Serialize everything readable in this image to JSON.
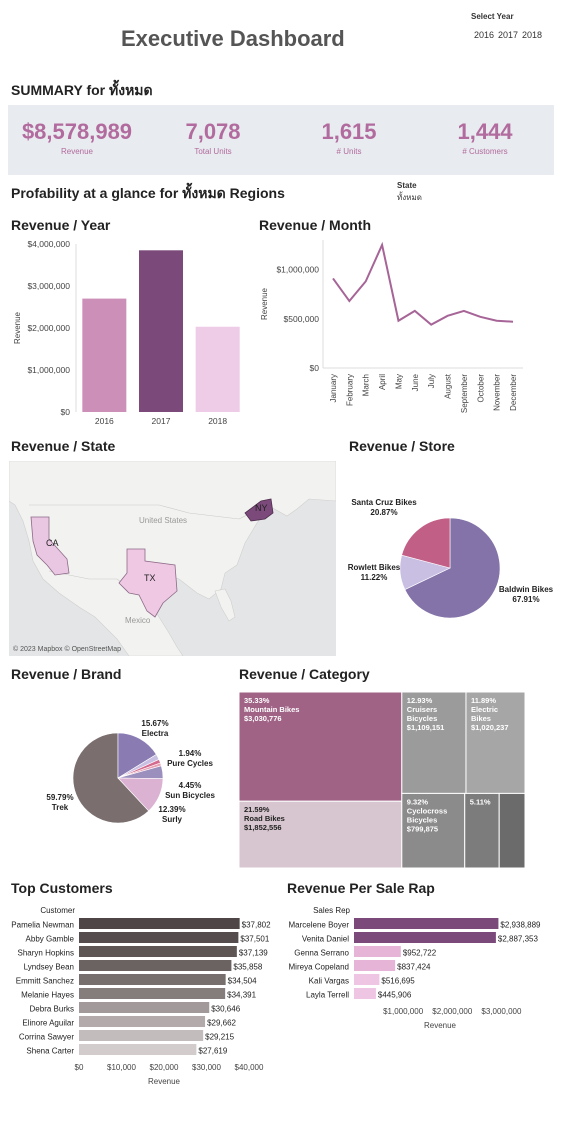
{
  "header": {
    "title": "Executive Dashboard",
    "year_filter_label": "Select Year",
    "years": [
      "2016",
      "2017",
      "2018"
    ]
  },
  "summary": {
    "heading": "SUMMARY for  ทั้งหมด",
    "kpis": [
      {
        "value": "$8,578,989",
        "label": "Revenue"
      },
      {
        "value": "7,078",
        "label": "Total Units"
      },
      {
        "value": "1,615",
        "label": "# Units"
      },
      {
        "value": "1,444",
        "label": "# Customers"
      }
    ]
  },
  "profitability": {
    "heading": "Profability at a glance for ทั้งหมด Regions",
    "state_label": "State",
    "state_value": "ทั้งหมด"
  },
  "colors": {
    "accent": "#b26b9e",
    "kpi_bg": "#e8ebef",
    "dark_purple": "#7b4a7b",
    "mid_pink": "#cc8fb8",
    "light_pink": "#eecbe6",
    "line": "#a66497"
  },
  "chart_data": [
    {
      "id": "revenue-year",
      "type": "bar",
      "title": "Revenue / Year",
      "ylabel": "Revenue",
      "categories": [
        "2016",
        "2017",
        "2018"
      ],
      "values": [
        2700000,
        3850000,
        2030000
      ],
      "ylim": [
        0,
        4000000
      ],
      "yticks": [
        0,
        1000000,
        2000000,
        3000000,
        4000000
      ],
      "ytick_labels": [
        "$0",
        "$1,000,000",
        "$2,000,000",
        "$3,000,000",
        "$4,000,000"
      ],
      "colors": [
        "#cc8fb8",
        "#7b4a7b",
        "#eecbe6"
      ]
    },
    {
      "id": "revenue-month",
      "type": "line",
      "title": "Revenue / Month",
      "ylabel": "Revenue",
      "categories": [
        "January",
        "February",
        "March",
        "April",
        "May",
        "June",
        "July",
        "August",
        "September",
        "October",
        "November",
        "December"
      ],
      "values": [
        910000,
        680000,
        880000,
        1250000,
        480000,
        580000,
        440000,
        530000,
        580000,
        520000,
        480000,
        470000
      ],
      "ylim": [
        0,
        1300000
      ],
      "yticks": [
        0,
        500000,
        1000000
      ],
      "ytick_labels": [
        "$0",
        "$500,000",
        "$1,000,000"
      ]
    },
    {
      "id": "revenue-state",
      "type": "map",
      "title": "Revenue / State",
      "labels": [
        "CA",
        "TX",
        "NY"
      ],
      "place_labels": [
        "United States",
        "Mexico"
      ],
      "attribution": "© 2023 Mapbox © OpenStreetMap"
    },
    {
      "id": "revenue-store",
      "type": "pie",
      "title": "Revenue / Store",
      "slices": [
        {
          "name": "Baldwin Bikes",
          "value": 67.91,
          "label": "67.91%",
          "color": "#8373a8"
        },
        {
          "name": "Rowlett Bikes",
          "value": 11.22,
          "label": "11.22%",
          "color": "#c9bfe3"
        },
        {
          "name": "Santa Cruz Bikes",
          "value": 20.87,
          "label": "20.87%",
          "color": "#c25f86"
        }
      ]
    },
    {
      "id": "revenue-brand",
      "type": "pie",
      "title": "Revenue / Brand",
      "slices": [
        {
          "name": "Trek",
          "value": 59.79,
          "label": "59.79%",
          "color": "#7a6e6e"
        },
        {
          "name": "Electra",
          "value": 15.67,
          "label": "15.67%",
          "color": "#8a7bb3"
        },
        {
          "name": "Pure Cycles",
          "value": 1.94,
          "label": "1.94%",
          "color": "#c9bfe3"
        },
        {
          "name": "",
          "value": 1.3,
          "label": "",
          "color": "#d46a8e"
        },
        {
          "name": "",
          "value": 1.0,
          "label": "",
          "color": "#e9a0b4"
        },
        {
          "name": "Sun Bicycles",
          "value": 4.45,
          "label": "4.45%",
          "color": "#9b8fbe"
        },
        {
          "name": "Surly",
          "value": 12.39,
          "label": "12.39%",
          "color": "#dcb2d2"
        }
      ]
    },
    {
      "id": "revenue-category",
      "type": "treemap",
      "title": "Revenue / Category",
      "items": [
        {
          "name": "Mountain Bikes",
          "pct": "35.33%",
          "value": "$3,030,776",
          "raw": 3030776,
          "color": "#a06386"
        },
        {
          "name": "Road Bikes",
          "pct": "21.59%",
          "value": "$1,852,556",
          "raw": 1852556,
          "color": "#d7c6cf"
        },
        {
          "name": "Cruisers Bicycles",
          "pct": "12.93%",
          "value": "$1,109,151",
          "raw": 1109151,
          "color": "#9b9b9b"
        },
        {
          "name": "Electric Bikes",
          "pct": "11.89%",
          "value": "$1,020,237",
          "raw": 1020237,
          "color": "#a6a6a6"
        },
        {
          "name": "Cyclocross Bicycles",
          "pct": "9.32%",
          "value": "$799,875",
          "raw": 799875,
          "color": "#8b8b8b"
        },
        {
          "name": "",
          "pct": "5.11%",
          "value": "",
          "raw": 438000,
          "color": "#7c7c7c"
        },
        {
          "name": "",
          "pct": "",
          "value": "",
          "raw": 328000,
          "color": "#6b6b6b"
        }
      ]
    },
    {
      "id": "top-customers",
      "type": "bar",
      "orientation": "horizontal",
      "title": "Top Customers",
      "category_header": "Customer",
      "xlabel": "Revenue",
      "xlim": [
        0,
        40000
      ],
      "xticks": [
        0,
        10000,
        20000,
        30000,
        40000
      ],
      "xtick_labels": [
        "$0",
        "$10,000",
        "$20,000",
        "$30,000",
        "$40,000"
      ],
      "categories": [
        "Pamelia Newman",
        "Abby Gamble",
        "Sharyn Hopkins",
        "Lyndsey Bean",
        "Emmitt Sanchez",
        "Melanie Hayes",
        "Debra Burks",
        "Elinore Aguilar",
        "Corrina Sawyer",
        "Shena Carter"
      ],
      "values": [
        37802,
        37501,
        37139,
        35858,
        34504,
        34391,
        30646,
        29662,
        29215,
        27619
      ],
      "value_labels": [
        "$37,802",
        "$37,501",
        "$37,139",
        "$35,858",
        "$34,504",
        "$34,391",
        "$30,646",
        "$29,662",
        "$29,215",
        "$27,619"
      ],
      "colors": [
        "#4e4646",
        "#554d4d",
        "#5e5555",
        "#6b6262",
        "#776e6e",
        "#857c7c",
        "#a29a9a",
        "#b3abab",
        "#c3bcbc",
        "#d3cccc"
      ]
    },
    {
      "id": "revenue-sale-rep",
      "type": "bar",
      "orientation": "horizontal",
      "title": "Revenue Per Sale Rap",
      "category_header": "Sales Rep",
      "xlabel": "Revenue",
      "xlim": [
        0,
        3500000
      ],
      "xticks": [
        1000000,
        2000000,
        3000000
      ],
      "xtick_labels": [
        "$1,000,000",
        "$2,000,000",
        "$3,000,000"
      ],
      "categories": [
        "Marcelene Boyer",
        "Venita Daniel",
        "Genna Serrano",
        "Mireya Copeland",
        "Kali Vargas",
        "Layla Terrell"
      ],
      "values": [
        2938889,
        2887353,
        952722,
        837424,
        516695,
        445906
      ],
      "value_labels": [
        "$2,938,889",
        "$2,887,353",
        "$952,722",
        "$837,424",
        "$516,695",
        "$445,906"
      ],
      "colors": [
        "#7b4a7b",
        "#7b4a7b",
        "#e6b4d7",
        "#e6b4d7",
        "#eec5e2",
        "#eec5e2"
      ]
    }
  ]
}
